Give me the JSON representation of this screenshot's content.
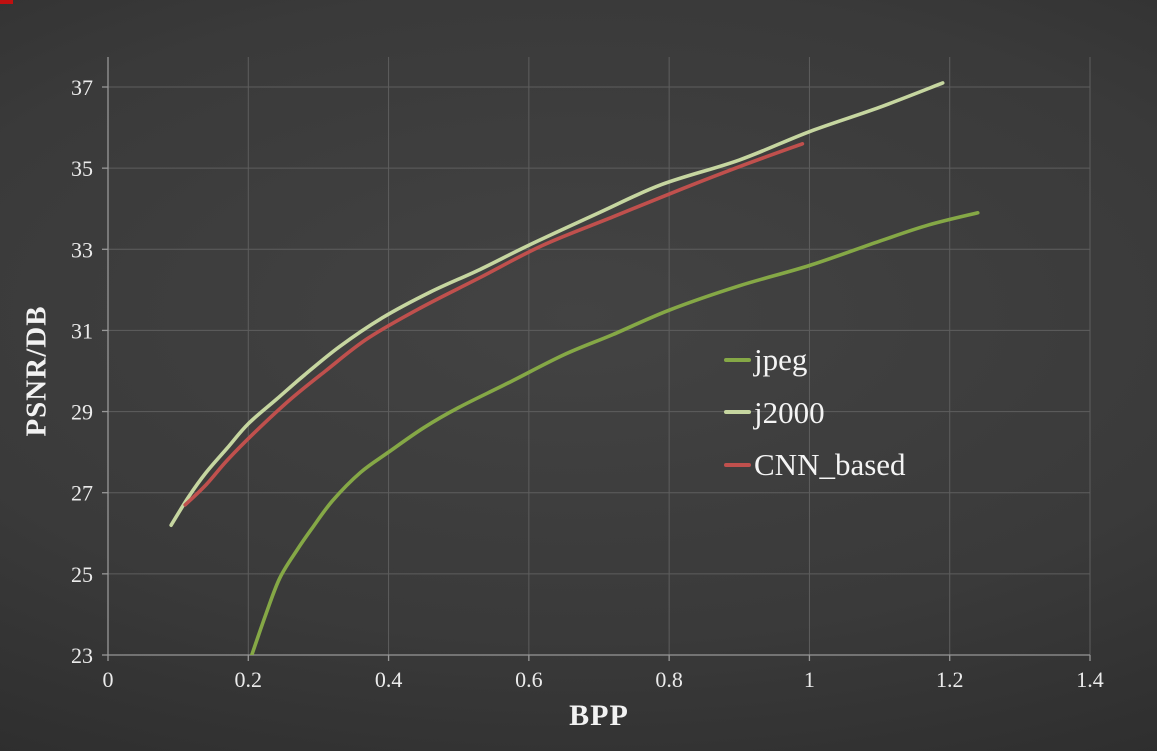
{
  "window": {
    "artifact_color": "#c01010"
  },
  "chart_data": {
    "type": "line",
    "title": "",
    "xlabel": "BPP",
    "ylabel": "PSNR/DB",
    "xlim": [
      0,
      1.4
    ],
    "ylim": [
      23,
      37
    ],
    "x_ticks": [
      0,
      0.2,
      0.4,
      0.6,
      0.8,
      1,
      1.2,
      1.4
    ],
    "y_ticks": [
      23,
      25,
      27,
      29,
      31,
      33,
      35,
      37
    ],
    "grid": true,
    "legend_position": "center-right",
    "grid_color": "#5e5e5e",
    "axis_color": "#989898",
    "text_color": "#ebebeb",
    "series": [
      {
        "name": "jpeg",
        "color": "#85a846",
        "points": [
          [
            0.205,
            23.0
          ],
          [
            0.225,
            24.0
          ],
          [
            0.245,
            24.9
          ],
          [
            0.27,
            25.6
          ],
          [
            0.29,
            26.1
          ],
          [
            0.32,
            26.8
          ],
          [
            0.36,
            27.5
          ],
          [
            0.4,
            28.0
          ],
          [
            0.45,
            28.6
          ],
          [
            0.5,
            29.1
          ],
          [
            0.57,
            29.7
          ],
          [
            0.65,
            30.4
          ],
          [
            0.72,
            30.9
          ],
          [
            0.8,
            31.5
          ],
          [
            0.9,
            32.1
          ],
          [
            1.0,
            32.6
          ],
          [
            1.1,
            33.2
          ],
          [
            1.17,
            33.6
          ],
          [
            1.24,
            33.9
          ]
        ]
      },
      {
        "name": "j2000",
        "color": "#c6d6a0",
        "points": [
          [
            0.09,
            26.2
          ],
          [
            0.115,
            26.9
          ],
          [
            0.14,
            27.5
          ],
          [
            0.17,
            28.1
          ],
          [
            0.2,
            28.7
          ],
          [
            0.24,
            29.3
          ],
          [
            0.28,
            29.9
          ],
          [
            0.33,
            30.6
          ],
          [
            0.39,
            31.3
          ],
          [
            0.46,
            31.95
          ],
          [
            0.53,
            32.5
          ],
          [
            0.6,
            33.1
          ],
          [
            0.7,
            33.9
          ],
          [
            0.79,
            34.6
          ],
          [
            0.9,
            35.2
          ],
          [
            1.0,
            35.9
          ],
          [
            1.1,
            36.5
          ],
          [
            1.19,
            37.1
          ]
        ]
      },
      {
        "name": "CNN_based",
        "color": "#c0504d",
        "points": [
          [
            0.11,
            26.7
          ],
          [
            0.14,
            27.2
          ],
          [
            0.17,
            27.8
          ],
          [
            0.21,
            28.5
          ],
          [
            0.26,
            29.3
          ],
          [
            0.31,
            30.0
          ],
          [
            0.37,
            30.8
          ],
          [
            0.445,
            31.55
          ],
          [
            0.53,
            32.3
          ],
          [
            0.62,
            33.1
          ],
          [
            0.72,
            33.8
          ],
          [
            0.82,
            34.5
          ],
          [
            0.91,
            35.1
          ],
          [
            0.99,
            35.6
          ]
        ]
      }
    ]
  }
}
